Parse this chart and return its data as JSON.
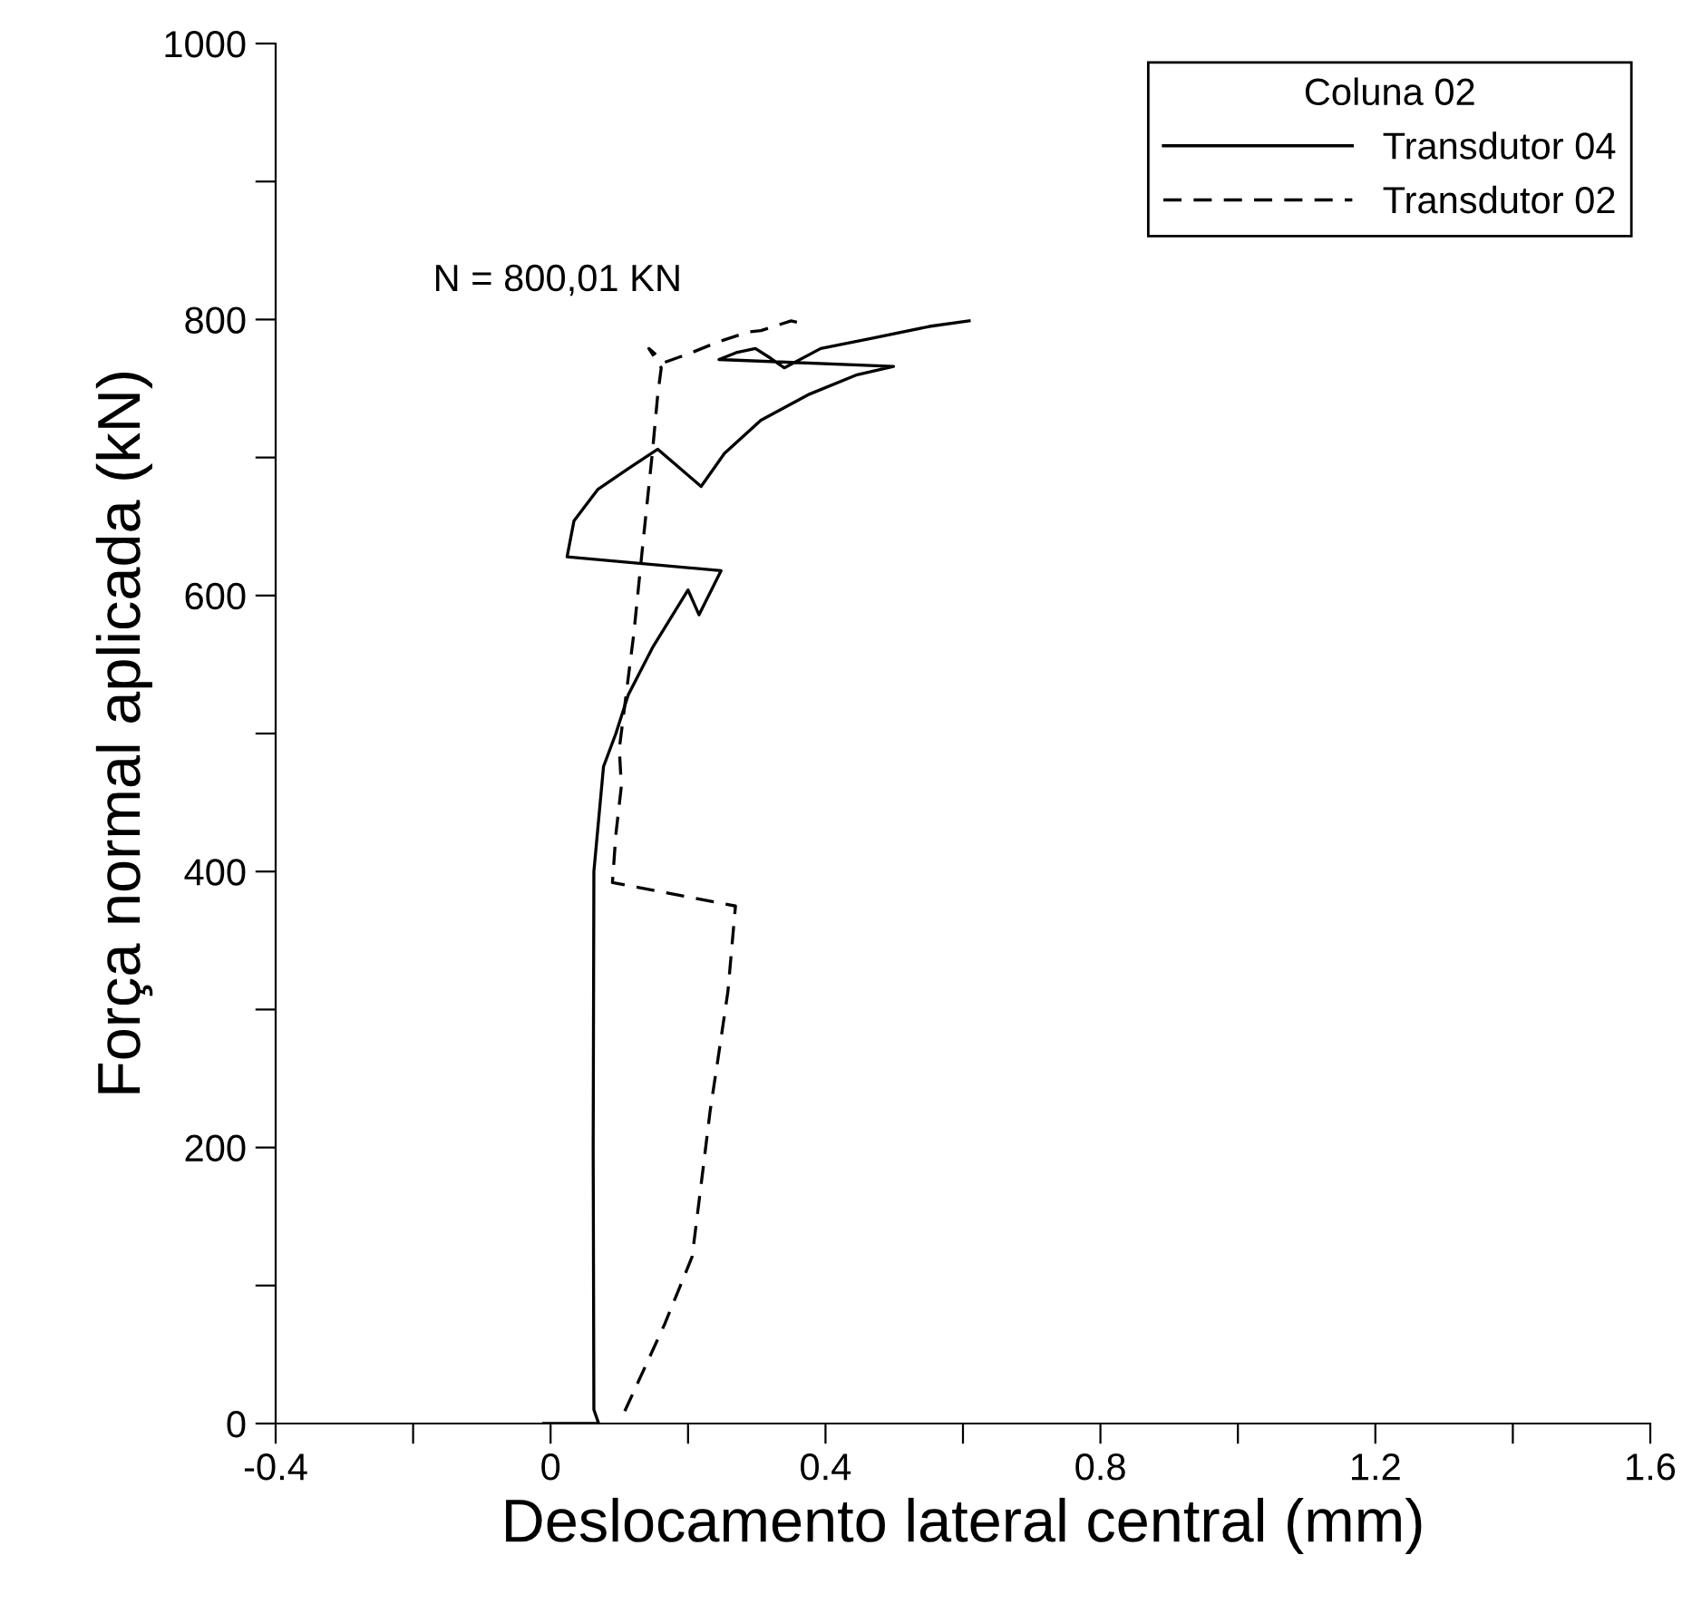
{
  "chart_data": {
    "type": "line",
    "xlabel": "Deslocamento lateral central (mm)",
    "ylabel": "Força normal aplicada (kN)",
    "legend_title": "Coluna 02",
    "annotations": [
      "N = 800,01 KN"
    ],
    "legend": "top right",
    "grid": false,
    "marker": "none",
    "xlim": [
      -0.4,
      1.6
    ],
    "ylim": [
      0,
      1000
    ],
    "xticks": [
      {
        "value": -0.4,
        "label": "-0.4"
      },
      {
        "value": -0.2,
        "label": null
      },
      {
        "value": 0,
        "label": "0"
      },
      {
        "value": 0.2,
        "label": null
      },
      {
        "value": 0.4,
        "label": "0.4"
      },
      {
        "value": 0.6,
        "label": null
      },
      {
        "value": 0.8,
        "label": "0.8"
      },
      {
        "value": 1.0,
        "label": null
      },
      {
        "value": 1.2,
        "label": "1.2"
      },
      {
        "value": 1.4,
        "label": null
      },
      {
        "value": 1.6,
        "label": "1.6"
      }
    ],
    "yticks": [
      0,
      {
        "value": 100,
        "label": null
      },
      200,
      {
        "value": 300,
        "label": null
      },
      400,
      {
        "value": 500,
        "label": null
      },
      600,
      {
        "value": 700,
        "label": null
      },
      800,
      {
        "value": 900,
        "label": null
      },
      1000
    ],
    "series": [
      {
        "name": "Transdutor 04",
        "color": "#000000",
        "line_style": "solid",
        "x": [
          -0.01,
          0.07,
          0.063,
          0.062,
          0.063,
          0.077,
          0.095,
          0.113,
          0.148,
          0.2,
          0.216,
          0.248,
          0.024,
          0.034,
          0.069,
          0.113,
          0.156,
          0.219,
          0.253,
          0.306,
          0.377,
          0.446,
          0.499,
          0.245,
          0.27,
          0.298,
          0.32,
          0.34,
          0.393,
          0.464,
          0.551,
          0.609
        ],
        "values": [
          0,
          0,
          10,
          200,
          400,
          476,
          500,
          528,
          562,
          604,
          586,
          618,
          628,
          654,
          677,
          692,
          706,
          679,
          703,
          727,
          746,
          760,
          766,
          771,
          776,
          779,
          772,
          765,
          779,
          786,
          795,
          799
        ]
      },
      {
        "name": "Transdutor 02",
        "color": "#000000",
        "line_style": "dashed",
        "x": [
          0.108,
          0.166,
          0.193,
          0.206,
          0.219,
          0.232,
          0.245,
          0.258,
          0.269,
          0.09,
          0.095,
          0.103,
          0.1,
          0.121,
          0.135,
          0.148,
          0.156,
          0.161,
          0.143,
          0.166,
          0.2,
          0.245,
          0.288,
          0.306,
          0.35,
          0.359
        ],
        "values": [
          9,
          72,
          105,
          121,
          173,
          226,
          269,
          313,
          375,
          392,
          427,
          462,
          489,
          572,
          641,
          703,
          746,
          765,
          779,
          769,
          775,
          784,
          791,
          792,
          799,
          798
        ]
      }
    ]
  }
}
